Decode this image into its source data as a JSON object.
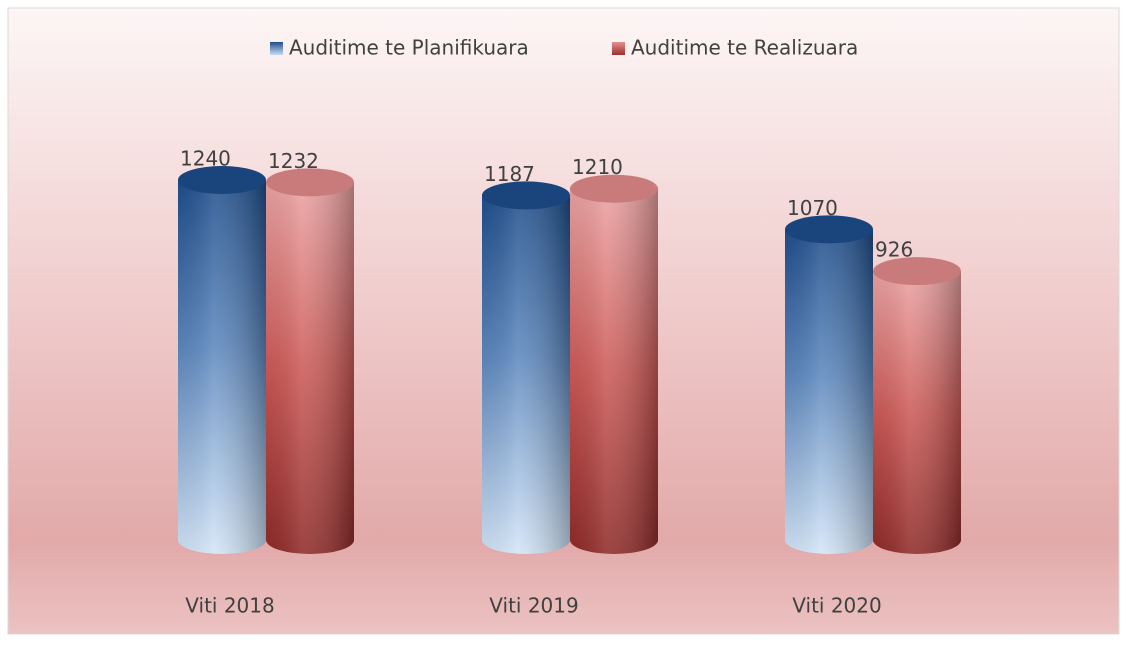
{
  "chart_data": {
    "type": "cylinder",
    "categories": [
      "Viti 2018",
      "Viti 2019",
      "Viti 2020"
    ],
    "series": [
      {
        "name": "Auditime te Planifikuara",
        "color": "#1f4e8c",
        "values": [
          1240,
          1187,
          1070
        ]
      },
      {
        "name": "Auditime te Realizuara",
        "color": "#c0504d",
        "values": [
          1232,
          1210,
          926
        ]
      }
    ],
    "legend": "top"
  }
}
